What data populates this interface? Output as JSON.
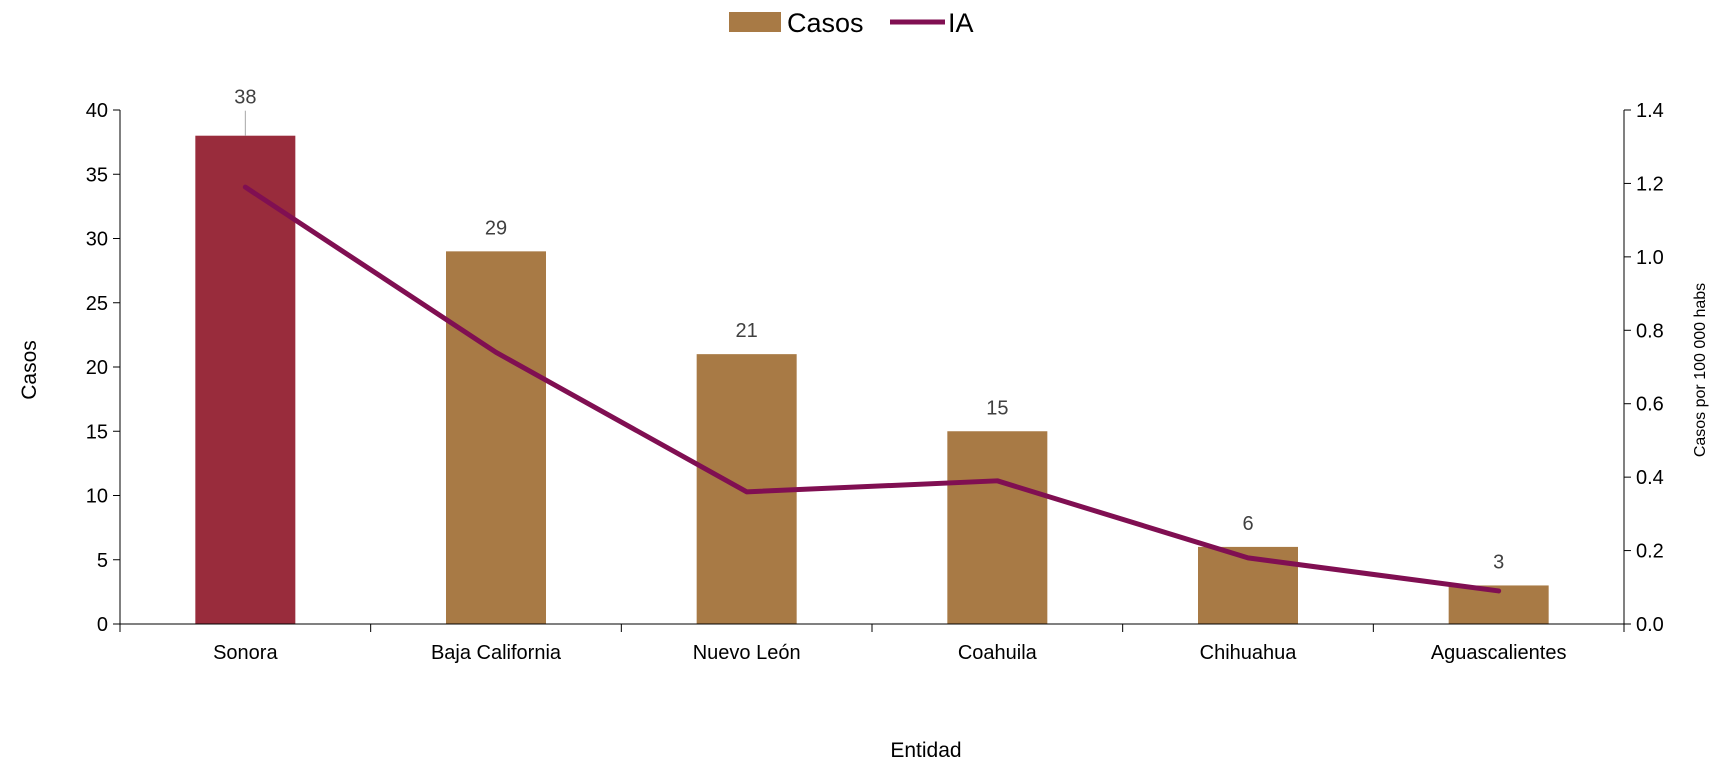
{
  "chart_data": {
    "type": "bar",
    "categories": [
      "Sonora",
      "Baja California",
      "Nuevo León",
      "Coahuila",
      "Chihuahua",
      "Aguascalientes"
    ],
    "series": [
      {
        "name": "Casos",
        "type": "bar",
        "axis": "left",
        "values": [
          38,
          29,
          21,
          15,
          6,
          3
        ]
      },
      {
        "name": "IA",
        "type": "line",
        "axis": "right",
        "values": [
          1.19,
          0.74,
          0.36,
          0.39,
          0.18,
          0.09
        ]
      }
    ],
    "data_labels": [
      "38",
      "29",
      "21",
      "15",
      "6",
      "3"
    ],
    "xlabel": "Entidad",
    "ylabel": "Casos",
    "y2label": "Casos por 100 000 habs",
    "ylim": [
      0,
      40
    ],
    "y2lim": [
      0,
      1.4
    ],
    "yticks": [
      "0",
      "5",
      "10",
      "15",
      "20",
      "25",
      "30",
      "35",
      "40"
    ],
    "y2ticks": [
      "0.0",
      "0.2",
      "0.4",
      "0.6",
      "0.8",
      "1.0",
      "1.2",
      "1.4"
    ],
    "legend_position": "top-center",
    "grid": false,
    "colors": {
      "bar": "#A87A45",
      "bar_highlight": "#992C3C",
      "line": "#800F52",
      "axis": "#000000",
      "data_label": "#404040"
    }
  }
}
